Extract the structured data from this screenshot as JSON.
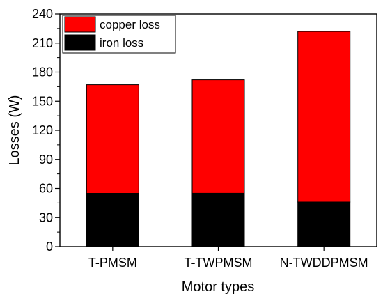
{
  "chart_data": {
    "type": "bar",
    "stacked": true,
    "categories": [
      "T-PMSM",
      "T-TWPMSM",
      "N-TWDDPMSM"
    ],
    "series": [
      {
        "name": "iron loss",
        "values": [
          55,
          55,
          46
        ],
        "color": "#000000"
      },
      {
        "name": "copper loss",
        "values": [
          112,
          117,
          176
        ],
        "color": "#ff0000"
      }
    ],
    "xlabel": "Motor types",
    "ylabel": "Losses (W)",
    "ylim": [
      0,
      240
    ],
    "yticks": [
      0,
      30,
      60,
      90,
      120,
      150,
      180,
      210,
      240
    ],
    "grid": false,
    "legend": {
      "placement": "top-left",
      "order": [
        "copper loss",
        "iron loss"
      ]
    }
  }
}
